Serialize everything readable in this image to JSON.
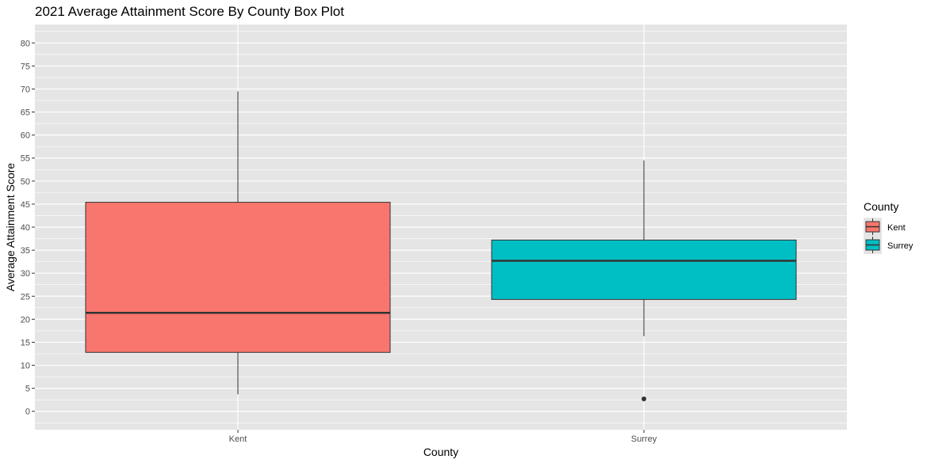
{
  "chart_data": {
    "type": "box",
    "title": "2021 Average Attainment Score By County Box Plot",
    "xlabel": "County",
    "ylabel": "Average Attainment Score",
    "categories": [
      "Kent",
      "Surrey"
    ],
    "ylim": [
      -4,
      84
    ],
    "yticks": [
      0,
      5,
      10,
      15,
      20,
      25,
      30,
      35,
      40,
      45,
      50,
      55,
      60,
      65,
      70,
      75,
      80
    ],
    "grid": true,
    "legend": {
      "title": "County",
      "position": "right",
      "entries": [
        {
          "label": "Kent",
          "color": "#F8766D"
        },
        {
          "label": "Surrey",
          "color": "#00BFC4"
        }
      ]
    },
    "boxes": [
      {
        "name": "Kent",
        "min": 3.7,
        "q1": 12.8,
        "median": 21.4,
        "q3": 45.4,
        "max": 69.5,
        "outliers": [],
        "color": "#F8766D"
      },
      {
        "name": "Surrey",
        "min": 16.3,
        "q1": 24.3,
        "median": 32.7,
        "q3": 37.2,
        "max": 54.5,
        "outliers": [
          2.7
        ],
        "color": "#00BFC4"
      }
    ]
  },
  "colors": {
    "panel_background": "#E5E5E5",
    "grid": "#FFFFFF",
    "box_outline": "#333333",
    "text_dark": "#4d4d4d"
  }
}
